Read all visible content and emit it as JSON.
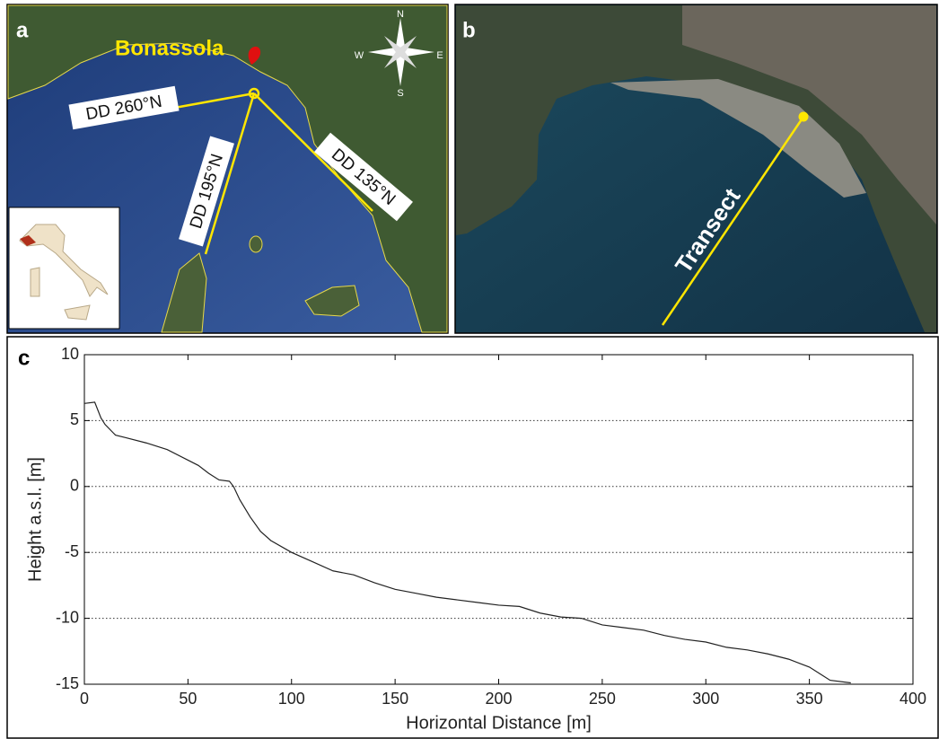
{
  "panels": {
    "a": {
      "label": "a",
      "place": "Bonassola",
      "directions": [
        "DD 260°N",
        "DD 195°N",
        "DD 135°N"
      ],
      "compass": [
        "N",
        "S",
        "E",
        "W"
      ]
    },
    "b": {
      "label": "b",
      "transect": "Transect"
    },
    "c": {
      "label": "c"
    }
  },
  "chart_data": {
    "type": "line",
    "xlabel": "Horizontal Distance [m]",
    "ylabel": "Height a.s.l. [m]",
    "x": [
      0,
      5,
      8,
      10,
      15,
      20,
      30,
      40,
      50,
      55,
      60,
      65,
      70,
      72,
      75,
      80,
      85,
      90,
      100,
      110,
      120,
      130,
      140,
      150,
      160,
      170,
      180,
      190,
      200,
      210,
      220,
      230,
      240,
      250,
      260,
      270,
      280,
      290,
      300,
      310,
      320,
      330,
      340,
      350,
      355,
      360,
      370
    ],
    "values": [
      6.3,
      6.4,
      5.2,
      4.7,
      3.9,
      3.7,
      3.3,
      2.8,
      2.0,
      1.6,
      1.0,
      0.5,
      0.4,
      0,
      -1.0,
      -2.3,
      -3.4,
      -4.1,
      -5.0,
      -5.7,
      -6.4,
      -6.7,
      -7.3,
      -7.8,
      -8.1,
      -8.4,
      -8.6,
      -8.8,
      -9.0,
      -9.1,
      -9.6,
      -9.9,
      -10.0,
      -10.5,
      -10.7,
      -10.9,
      -11.3,
      -11.6,
      -11.8,
      -12.2,
      -12.4,
      -12.7,
      -13.1,
      -13.7,
      -14.2,
      -14.7,
      -14.9
    ],
    "color": "#222222",
    "xlim": [
      0,
      400
    ],
    "xticks": [
      0,
      50,
      100,
      150,
      200,
      250,
      300,
      350,
      400
    ],
    "ylim": [
      -15,
      10
    ],
    "yticks": [
      -15,
      -10,
      -5,
      0,
      5,
      10
    ],
    "grid": true
  }
}
